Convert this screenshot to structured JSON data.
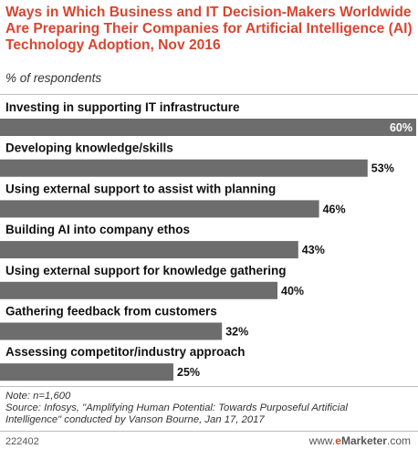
{
  "header": {
    "title": "Ways in Which Business and IT Decision-Makers Worldwide Are Preparing Their Companies for Artificial Intelligence (AI) Technology Adoption, Nov 2016",
    "subtitle": "% of respondents"
  },
  "colors": {
    "title": "#d9452f",
    "bar": "#6d6d6d",
    "divider": "#bdbdbd"
  },
  "chart_data": {
    "type": "bar",
    "orientation": "horizontal",
    "categories": [
      "Investing in supporting IT infrastructure",
      "Developing knowledge/skills",
      "Using external support to assist with planning",
      "Building AI into company ethos",
      "Using external support for knowledge gathering",
      "Gathering feedback from customers",
      "Assessing competitor/industry approach"
    ],
    "values": [
      60,
      53,
      46,
      43,
      40,
      32,
      25
    ],
    "value_labels": [
      "60%",
      "53%",
      "46%",
      "43%",
      "40%",
      "32%",
      "25%"
    ],
    "xlim": [
      0,
      60
    ],
    "grid": false,
    "legend": "none"
  },
  "footer": {
    "note": "Note: n=1,600",
    "source_line1": "Source: Infosys, \"Amplifying Human Potential: Towards Purposeful Artificial",
    "source_line2": "Intelligence\" conducted by Vanson Bourne, Jan 17, 2017",
    "chart_id": "222402",
    "brand_prefix": "www.",
    "brand_e": "e",
    "brand_rest": "Marketer",
    "brand_suffix": ".com"
  }
}
